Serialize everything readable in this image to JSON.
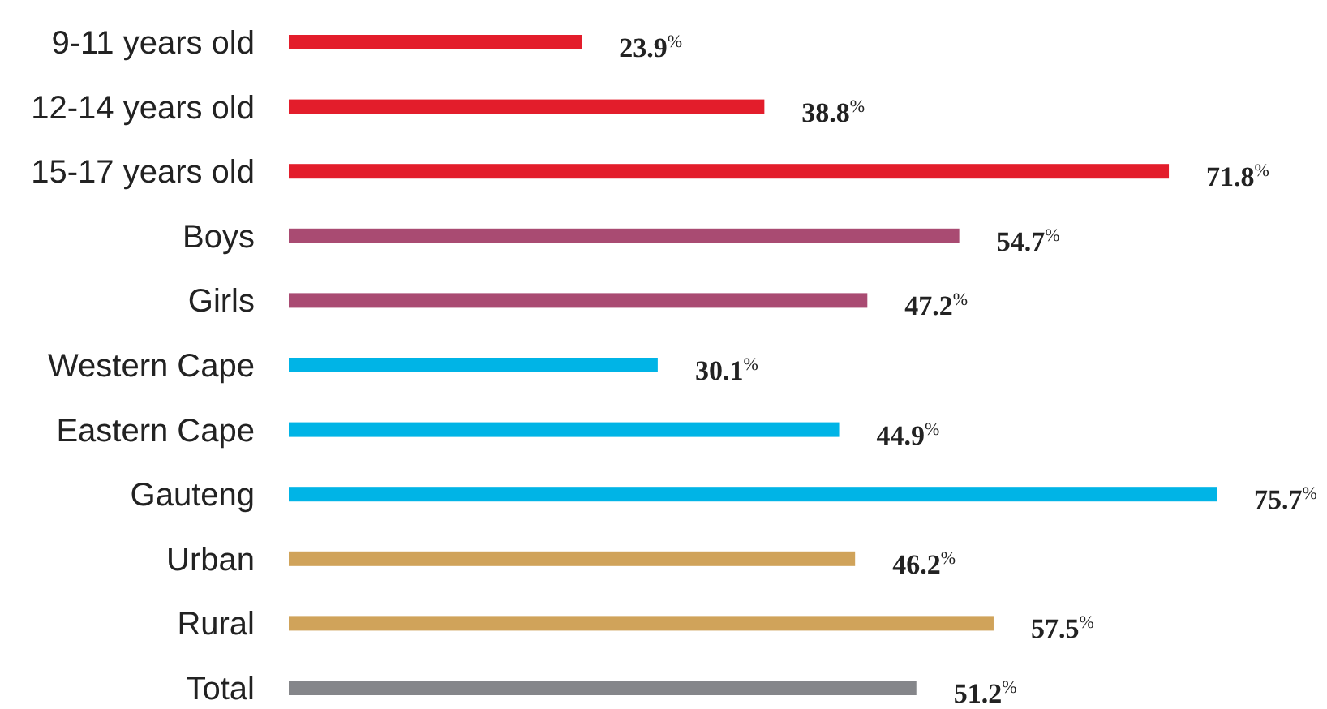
{
  "chart_data": {
    "type": "bar",
    "orientation": "horizontal",
    "categories": [
      "9-11 years old",
      "12-14 years old",
      "15-17 years old",
      "Boys",
      "Girls",
      "Western Cape",
      "Eastern Cape",
      "Gauteng",
      "Urban",
      "Rural",
      "Total"
    ],
    "values": [
      23.9,
      38.8,
      71.8,
      54.7,
      47.2,
      30.1,
      44.9,
      75.7,
      46.2,
      57.5,
      51.2
    ],
    "colors": [
      "#e31d2b",
      "#e31d2b",
      "#e31d2b",
      "#a94b72",
      "#a94b72",
      "#00b4e6",
      "#00b4e6",
      "#00b4e6",
      "#d0a35a",
      "#d0a35a",
      "#85868a"
    ],
    "value_labels": [
      "23.9$^{%}$",
      "38.8$^{%}$",
      "71.8$^{%}$",
      "54.7$^{%}$",
      "47.2$^{%}$",
      "30.1$^{%}$",
      "44.9$^{%}$",
      "75.7$^{%}$",
      "46.2$^{%}$",
      "57.5$^{%}$",
      "51.2$^{%}$"
    ]
  }
}
